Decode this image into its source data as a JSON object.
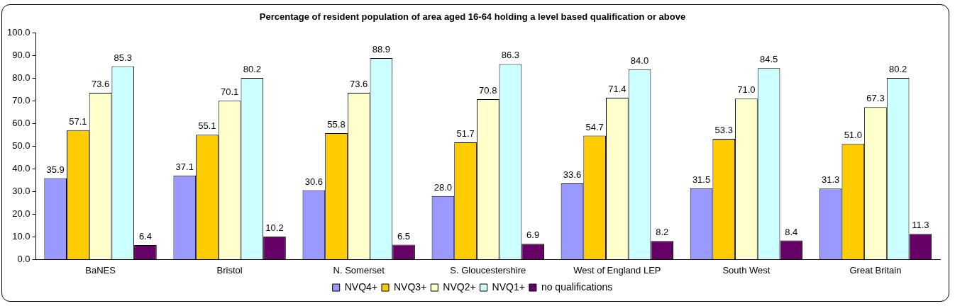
{
  "chart_data": {
    "type": "bar",
    "title": "Percentage of resident population of area aged 16-64 holding a level based qualification or above",
    "categories": [
      "BaNES",
      "Bristol",
      "N. Somerset",
      "S. Gloucestershire",
      "West of England LEP",
      "South West",
      "Great Britain"
    ],
    "series": [
      {
        "name": "NVQ4+",
        "color": "#9999ff",
        "values": [
          35.9,
          37.1,
          30.6,
          28.0,
          33.6,
          31.5,
          31.3
        ],
        "value_labels": [
          "35.9",
          "37.1",
          "30.6",
          "28.0",
          "33.6",
          "31.5",
          "31.3"
        ]
      },
      {
        "name": "NVQ3+",
        "color": "#ffcc00",
        "values": [
          57.1,
          55.1,
          55.8,
          51.7,
          54.7,
          53.3,
          51.0
        ],
        "value_labels": [
          "57.1",
          "55.1",
          "55.8",
          "51.7",
          "54.7",
          "53.3",
          "51.0"
        ]
      },
      {
        "name": "NVQ2+",
        "color": "#ffffcc",
        "values": [
          73.6,
          70.1,
          73.6,
          70.8,
          71.4,
          71.0,
          67.3
        ],
        "value_labels": [
          "73.6",
          "70.1",
          "73.6",
          "70.8",
          "71.4",
          "71.0",
          "67.3"
        ]
      },
      {
        "name": "NVQ1+",
        "color": "#ccffff",
        "values": [
          85.3,
          80.2,
          88.9,
          86.3,
          84.0,
          84.5,
          80.2
        ],
        "value_labels": [
          "85.3",
          "80.2",
          "88.9",
          "86.3",
          "84.0",
          "84.5",
          "80.2"
        ]
      },
      {
        "name": "no qualifications",
        "color": "#660066",
        "values": [
          6.4,
          10.2,
          6.5,
          6.9,
          8.2,
          8.4,
          11.3
        ],
        "value_labels": [
          "6.4",
          "10.2",
          "6.5",
          "6.9",
          "8.2",
          "8.4",
          "11.3"
        ]
      }
    ],
    "ylim": [
      0,
      100
    ],
    "yticks": [
      {
        "value": 0,
        "label": "0.0"
      },
      {
        "value": 10,
        "label": "10.0"
      },
      {
        "value": 20,
        "label": "20.0"
      },
      {
        "value": 30,
        "label": "30.0"
      },
      {
        "value": 40,
        "label": "40.0"
      },
      {
        "value": 50,
        "label": "50.0"
      },
      {
        "value": 60,
        "label": "60.0"
      },
      {
        "value": 70,
        "label": "70.0"
      },
      {
        "value": 80,
        "label": "80.0"
      },
      {
        "value": 90,
        "label": "90.0"
      },
      {
        "value": 100,
        "label": "100.0"
      }
    ],
    "grid": false,
    "legend": "bottom"
  }
}
